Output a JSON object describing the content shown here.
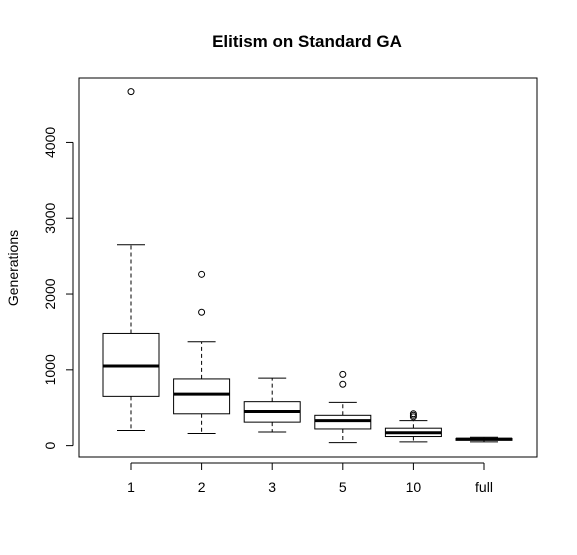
{
  "chart_data": {
    "type": "boxplot",
    "title": "Elitism on Standard GA",
    "xlabel": "",
    "ylabel": "Generations",
    "categories": [
      "1",
      "2",
      "3",
      "5",
      "10",
      "full"
    ],
    "y_ticks": [
      "0",
      "1000",
      "2000",
      "3000",
      "4000"
    ],
    "ylim": [
      -150,
      4850
    ],
    "grid": false,
    "boxes": [
      {
        "category": "1",
        "whisker_low": 200,
        "q1": 650,
        "median": 1050,
        "q3": 1480,
        "whisker_high": 2650,
        "outliers": [
          4670
        ]
      },
      {
        "category": "2",
        "whisker_low": 160,
        "q1": 420,
        "median": 680,
        "q3": 880,
        "whisker_high": 1370,
        "outliers": [
          1760,
          2260
        ]
      },
      {
        "category": "3",
        "whisker_low": 180,
        "q1": 310,
        "median": 450,
        "q3": 580,
        "whisker_high": 890,
        "outliers": []
      },
      {
        "category": "5",
        "whisker_low": 40,
        "q1": 220,
        "median": 330,
        "q3": 400,
        "whisker_high": 570,
        "outliers": [
          810,
          940
        ]
      },
      {
        "category": "10",
        "whisker_low": 50,
        "q1": 120,
        "median": 170,
        "q3": 230,
        "whisker_high": 330,
        "outliers": [
          380,
          400,
          420
        ]
      },
      {
        "category": "full",
        "whisker_low": 50,
        "q1": 70,
        "median": 85,
        "q3": 95,
        "whisker_high": 110,
        "outliers": []
      }
    ]
  }
}
